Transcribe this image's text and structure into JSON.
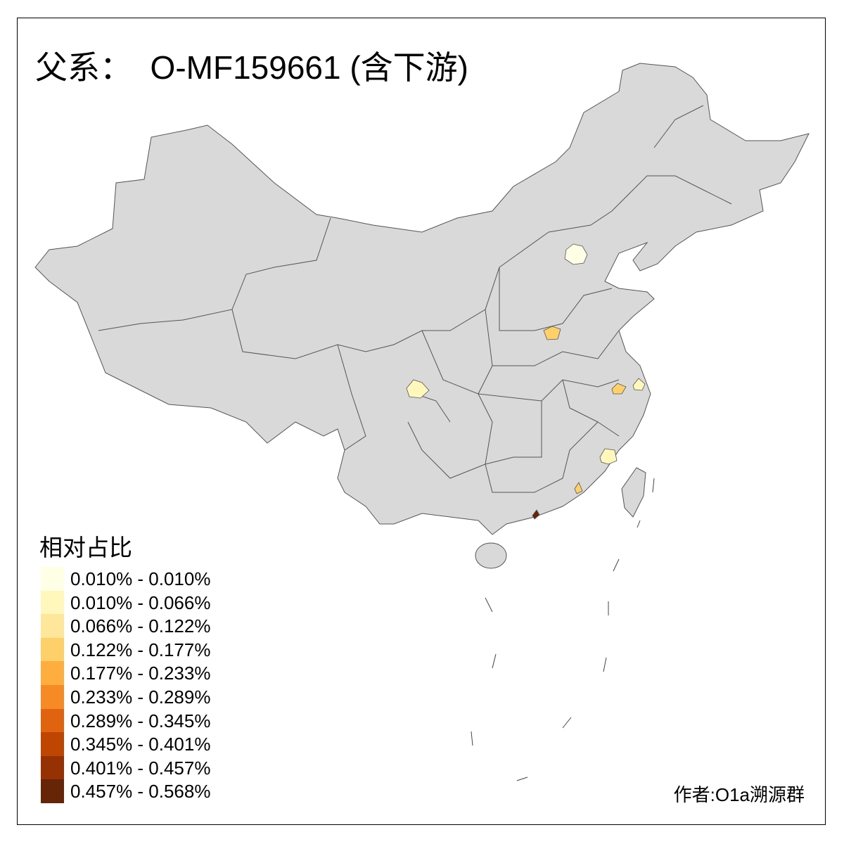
{
  "title": "父系：  O-MF159661 (含下游)",
  "legend": {
    "title": "相对占比",
    "items": [
      {
        "label": "0.010% - 0.010%",
        "color": "#FFFFE5"
      },
      {
        "label": "0.010% - 0.066%",
        "color": "#FFF7BC"
      },
      {
        "label": "0.066% - 0.122%",
        "color": "#FEE69A"
      },
      {
        "label": "0.122% - 0.177%",
        "color": "#FED06A"
      },
      {
        "label": "0.177% - 0.233%",
        "color": "#FEAE3E"
      },
      {
        "label": "0.233% - 0.289%",
        "color": "#F68A24"
      },
      {
        "label": "0.289% - 0.345%",
        "color": "#E0630F"
      },
      {
        "label": "0.345% - 0.401%",
        "color": "#BF4503"
      },
      {
        "label": "0.401% - 0.457%",
        "color": "#963104"
      },
      {
        "label": "0.457% - 0.568%",
        "color": "#662506"
      }
    ]
  },
  "map": {
    "base_color": "#D9D9D9",
    "border_color": "#555555",
    "highlighted_regions": [
      {
        "region": "Beijing",
        "class": 0
      },
      {
        "region": "Zhengzhou area",
        "class": 3
      },
      {
        "region": "Chengdu area",
        "class": 1
      },
      {
        "region": "Hefei area",
        "class": 3
      },
      {
        "region": "Shanghai",
        "class": 1
      },
      {
        "region": "Fuzhou area",
        "class": 1
      },
      {
        "region": "Shantou area",
        "class": 3
      },
      {
        "region": "Pearl River Delta area",
        "class": 9
      }
    ]
  },
  "author": "作者:O1a溯源群"
}
